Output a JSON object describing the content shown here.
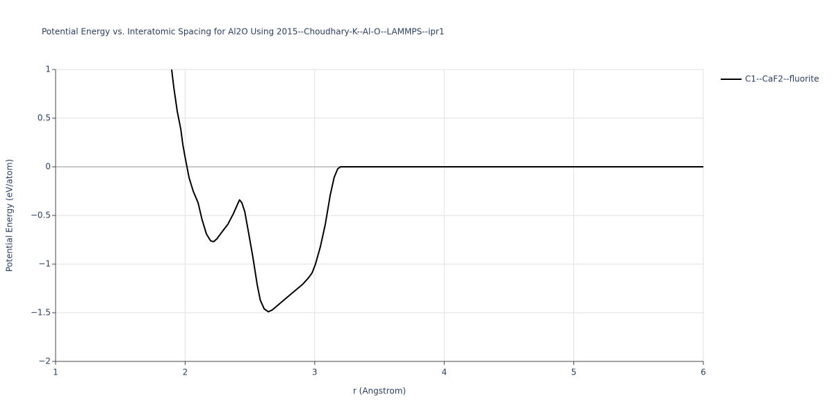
{
  "chart_data": {
    "type": "line",
    "title": "Potential Energy vs. Interatomic Spacing for Al2O Using 2015--Choudhary-K--Al-O--LAMMPS--ipr1",
    "x_label": "r (Angstrom)",
    "y_label": "Potential Energy (eV/atom)",
    "x": [
      1.896,
      1.912,
      1.939,
      1.966,
      1.982,
      1.998,
      2.03,
      2.062,
      2.1,
      2.13,
      2.164,
      2.196,
      2.22,
      2.245,
      2.29,
      2.33,
      2.373,
      2.406,
      2.42,
      2.438,
      2.46,
      2.49,
      2.523,
      2.556,
      2.58,
      2.61,
      2.642,
      2.674,
      2.744,
      2.824,
      2.905,
      2.953,
      2.98,
      3.006,
      3.044,
      3.082,
      3.12,
      3.15,
      3.178,
      3.2,
      6.0
    ],
    "series": [
      {
        "name": "C1--CaF2--fluorite",
        "color": "#000000",
        "values": [
          1.0,
          0.82,
          0.57,
          0.39,
          0.23,
          0.11,
          -0.11,
          -0.25,
          -0.37,
          -0.54,
          -0.69,
          -0.76,
          -0.77,
          -0.74,
          -0.66,
          -0.59,
          -0.48,
          -0.38,
          -0.34,
          -0.37,
          -0.46,
          -0.68,
          -0.93,
          -1.21,
          -1.37,
          -1.46,
          -1.49,
          -1.47,
          -1.39,
          -1.3,
          -1.21,
          -1.14,
          -1.09,
          -1.0,
          -0.82,
          -0.59,
          -0.29,
          -0.11,
          -0.02,
          0,
          0
        ]
      }
    ],
    "xlim": [
      1,
      6
    ],
    "xticks": [
      1,
      2,
      3,
      4,
      5,
      6
    ],
    "ylim": [
      -2,
      1
    ],
    "yticks": [
      {
        "value": -2,
        "label": "−2"
      },
      {
        "value": -1.5,
        "label": "−1.5"
      },
      {
        "value": -1,
        "label": "−1"
      },
      {
        "value": -0.5,
        "label": "−0.5"
      },
      0,
      0.5,
      1
    ],
    "grid": true
  }
}
